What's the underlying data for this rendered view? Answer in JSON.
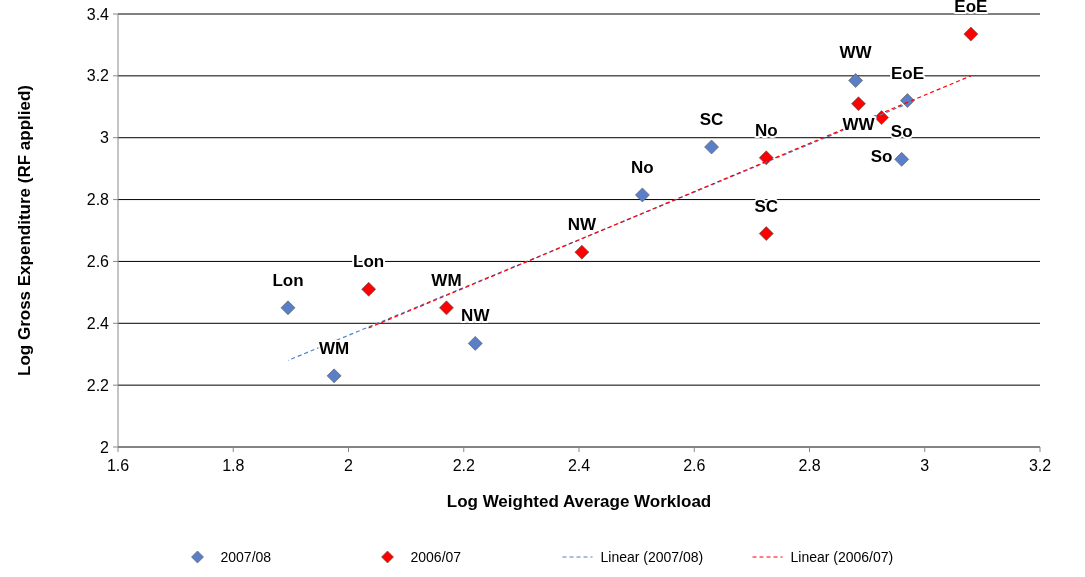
{
  "chart_data": {
    "type": "scatter",
    "xlabel": "Log Weighted Average Workload",
    "ylabel": "Log Gross Expenditure (RF applied)",
    "xlim": [
      1.6,
      3.2
    ],
    "xticks": [
      1.6,
      1.8,
      2,
      2.2,
      2.4,
      2.6,
      2.8,
      3,
      3.2
    ],
    "ylim": [
      2,
      3.4
    ],
    "yticks": [
      2,
      2.2,
      2.4,
      2.6,
      2.8,
      3,
      3.2,
      3.4
    ],
    "grid": "y",
    "legend": "bottom",
    "marker": "diamond",
    "series": [
      {
        "name": "2007/08",
        "color": "#5b7fc7",
        "x": [
          1.895,
          1.975,
          2.22,
          2.51,
          2.63,
          2.88,
          2.97,
          2.96
        ],
        "values": [
          2.45,
          2.23,
          2.335,
          2.815,
          2.97,
          3.185,
          3.12,
          2.93
        ]
      },
      {
        "name": "2006/07",
        "color": "#ff0000",
        "x": [
          2.035,
          2.17,
          2.405,
          2.725,
          2.725,
          2.885,
          2.925,
          3.08
        ],
        "values": [
          2.51,
          2.45,
          2.63,
          2.935,
          2.69,
          3.11,
          3.065,
          3.335
        ]
      },
      {
        "name": "Linear (2007/08)",
        "type": "line",
        "line_style": "dashed",
        "marker": "none",
        "color": "#4f7ec9",
        "x": [
          1.895,
          2.97
        ],
        "values": [
          2.28,
          3.11
        ]
      },
      {
        "name": "Linear (2006/07)",
        "type": "line",
        "line_style": "dashed",
        "marker": "none",
        "color": "#ff0000",
        "x": [
          2.035,
          3.08
        ],
        "values": [
          2.385,
          3.2
        ]
      }
    ],
    "annotations": [
      {
        "text": "Lon",
        "x": 1.895,
        "y": 2.45
      },
      {
        "text": "WM",
        "x": 1.975,
        "y": 2.23
      },
      {
        "text": "NW",
        "x": 2.22,
        "y": 2.335
      },
      {
        "text": "No",
        "x": 2.51,
        "y": 2.815
      },
      {
        "text": "SC",
        "x": 2.63,
        "y": 2.97
      },
      {
        "text": "WW",
        "x": 2.88,
        "y": 3.185
      },
      {
        "text": "EoE",
        "x": 2.97,
        "y": 3.12
      },
      {
        "text": "So",
        "x": 2.96,
        "y": 2.93
      },
      {
        "text": "Lon",
        "x": 2.035,
        "y": 2.51
      },
      {
        "text": "WM",
        "x": 2.17,
        "y": 2.45
      },
      {
        "text": "NW",
        "x": 2.405,
        "y": 2.63
      },
      {
        "text": "No",
        "x": 2.725,
        "y": 2.935
      },
      {
        "text": "SC",
        "x": 2.725,
        "y": 2.69
      },
      {
        "text": "WW",
        "x": 2.885,
        "y": 3.11
      },
      {
        "text": "So",
        "x": 2.925,
        "y": 3.065
      },
      {
        "text": "EoE",
        "x": 3.08,
        "y": 3.335
      }
    ]
  }
}
